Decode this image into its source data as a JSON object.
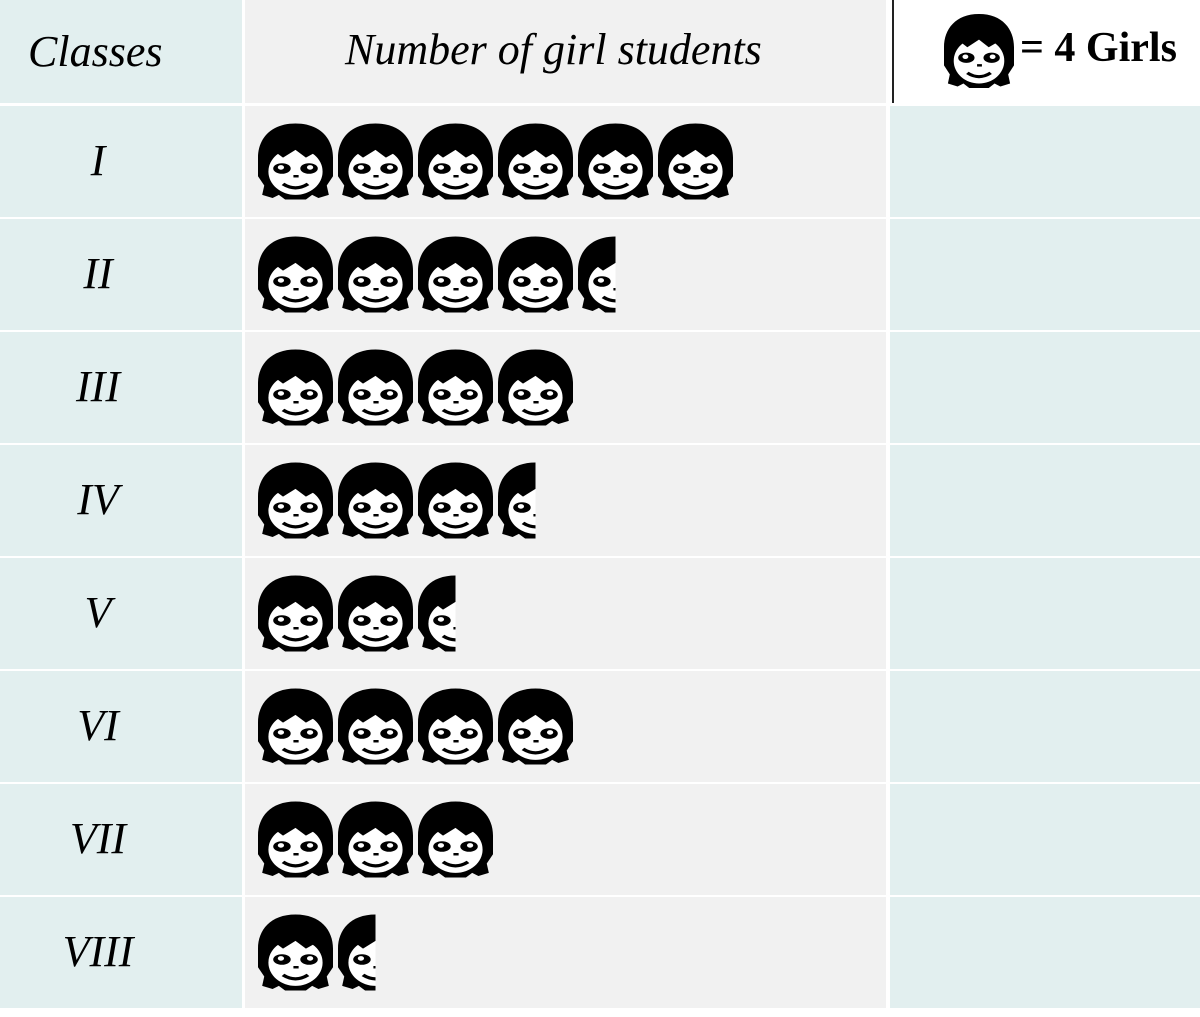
{
  "header": {
    "classes_label": "Classes",
    "count_label": "Number of girl students",
    "key_label": "= 4 Girls"
  },
  "chart_data": {
    "type": "pictograph",
    "symbol": "girl-face-icon",
    "symbol_value": 4,
    "categories": [
      "I",
      "II",
      "III",
      "IV",
      "V",
      "VI",
      "VII",
      "VIII"
    ],
    "symbols": [
      6,
      4.5,
      4,
      3.5,
      2.5,
      4,
      3,
      1.5
    ],
    "values": [
      24,
      18,
      16,
      14,
      10,
      16,
      12,
      6
    ]
  },
  "colors": {
    "class_column": "#e2efef",
    "pictograph_column": "#f1f1f1",
    "row_divider": "#ffffff",
    "icon": "#000000"
  }
}
